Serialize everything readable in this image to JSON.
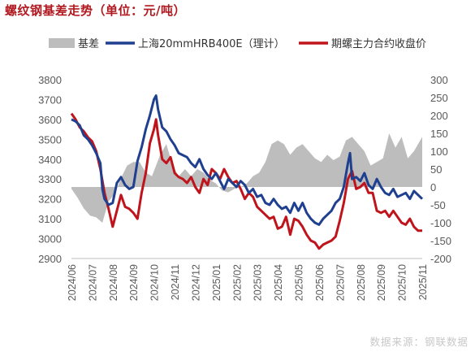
{
  "title": "螺纹钢基差走势（单位：元/吨）",
  "source": "数据来源：钢联数据",
  "chart_data": {
    "type": "line",
    "x_labels": [
      "2024/06",
      "2024/07",
      "2024/08",
      "2024/09",
      "2024/10",
      "2024/11",
      "2024/12",
      "2025/01",
      "2025/02",
      "2025/03",
      "2025/04",
      "2025/05",
      "2025/06",
      "2025/07",
      "2025/08",
      "2025/09",
      "2025/10",
      "2025/11"
    ],
    "y_left": {
      "min": 2900,
      "max": 3800,
      "ticks": [
        2900,
        3000,
        3100,
        3200,
        3300,
        3400,
        3500,
        3600,
        3700,
        3800
      ]
    },
    "y_right": {
      "min": -200,
      "max": 300,
      "ticks": [
        -200,
        -150,
        -100,
        -50,
        0,
        50,
        100,
        150,
        200,
        250,
        300
      ]
    },
    "legend": [
      "基差",
      "上海20mmHRB400E（理计）",
      "期螺主力合约收盘价"
    ],
    "colors": {
      "basis": "#bdbdbd",
      "spot": "#1f3f8f",
      "futures": "#c0141c"
    },
    "series": [
      {
        "name": "上海20mmHRB400E（理计）",
        "axis": "left",
        "x": [
          0,
          0.2,
          0.4,
          0.6,
          0.8,
          1.0,
          1.2,
          1.4,
          1.5,
          1.6,
          1.8,
          2.0,
          2.2,
          2.4,
          2.6,
          2.8,
          3.0,
          3.2,
          3.4,
          3.6,
          3.8,
          4.0,
          4.1,
          4.2,
          4.4,
          4.6,
          4.8,
          5.0,
          5.2,
          5.4,
          5.6,
          5.8,
          6.0,
          6.2,
          6.4,
          6.6,
          6.8,
          7.0,
          7.2,
          7.4,
          7.6,
          7.8,
          8.0,
          8.2,
          8.4,
          8.6,
          8.8,
          9.0,
          9.2,
          9.4,
          9.6,
          9.8,
          10.0,
          10.2,
          10.4,
          10.6,
          10.8,
          11.0,
          11.2,
          11.4,
          11.6,
          11.8,
          12.0,
          12.2,
          12.4,
          12.6,
          12.8,
          13.0,
          13.2,
          13.4,
          13.5,
          13.6,
          13.8,
          14.0,
          14.2,
          14.4,
          14.6,
          14.8,
          15.0,
          15.2,
          15.4,
          15.6,
          15.8,
          16.0,
          16.2,
          16.4,
          16.6,
          16.8,
          17.0
        ],
        "y": [
          3600,
          3590,
          3570,
          3520,
          3500,
          3470,
          3430,
          3380,
          3250,
          3200,
          3170,
          3180,
          3280,
          3310,
          3270,
          3250,
          3260,
          3390,
          3460,
          3550,
          3620,
          3700,
          3720,
          3650,
          3560,
          3540,
          3500,
          3470,
          3430,
          3420,
          3410,
          3380,
          3360,
          3400,
          3350,
          3320,
          3300,
          3330,
          3290,
          3250,
          3300,
          3280,
          3260,
          3290,
          3270,
          3230,
          3250,
          3210,
          3220,
          3180,
          3170,
          3200,
          3170,
          3150,
          3160,
          3130,
          3180,
          3140,
          3180,
          3130,
          3100,
          3080,
          3070,
          3100,
          3120,
          3140,
          3180,
          3200,
          3260,
          3380,
          3430,
          3300,
          3310,
          3290,
          3330,
          3270,
          3250,
          3300,
          3260,
          3230,
          3220,
          3250,
          3210,
          3220,
          3230,
          3200,
          3240,
          3220,
          3200
        ]
      },
      {
        "name": "期螺主力合约收盘价",
        "axis": "left",
        "x": [
          0,
          0.2,
          0.4,
          0.6,
          0.8,
          1.0,
          1.2,
          1.4,
          1.6,
          1.8,
          2.0,
          2.2,
          2.4,
          2.6,
          2.8,
          3.0,
          3.2,
          3.4,
          3.6,
          3.8,
          4.0,
          4.1,
          4.2,
          4.4,
          4.6,
          4.8,
          5.0,
          5.2,
          5.4,
          5.6,
          5.8,
          6.0,
          6.2,
          6.4,
          6.6,
          6.8,
          7.0,
          7.2,
          7.4,
          7.6,
          7.8,
          8.0,
          8.2,
          8.4,
          8.6,
          8.8,
          9.0,
          9.2,
          9.4,
          9.6,
          9.8,
          10.0,
          10.2,
          10.4,
          10.6,
          10.8,
          11.0,
          11.2,
          11.4,
          11.6,
          11.8,
          12.0,
          12.2,
          12.4,
          12.6,
          12.8,
          13.0,
          13.2,
          13.4,
          13.6,
          13.8,
          14.0,
          14.2,
          14.4,
          14.6,
          14.8,
          15.0,
          15.2,
          15.4,
          15.6,
          15.8,
          16.0,
          16.2,
          16.4,
          16.6,
          16.8,
          17.0
        ],
        "y": [
          3630,
          3600,
          3560,
          3540,
          3510,
          3490,
          3440,
          3350,
          3230,
          3150,
          3060,
          3140,
          3220,
          3160,
          3150,
          3130,
          3100,
          3230,
          3330,
          3480,
          3550,
          3600,
          3520,
          3400,
          3380,
          3410,
          3330,
          3310,
          3300,
          3280,
          3310,
          3260,
          3230,
          3300,
          3270,
          3350,
          3330,
          3300,
          3350,
          3310,
          3280,
          3290,
          3250,
          3200,
          3230,
          3210,
          3160,
          3140,
          3120,
          3100,
          3110,
          3050,
          3060,
          3110,
          3020,
          3100,
          3090,
          3060,
          3020,
          2990,
          2980,
          2950,
          2970,
          2980,
          2990,
          3010,
          3090,
          3180,
          3300,
          3340,
          3250,
          3260,
          3280,
          3230,
          3230,
          3140,
          3130,
          3140,
          3110,
          3140,
          3110,
          3080,
          3070,
          3100,
          3060,
          3040,
          3040
        ]
      },
      {
        "name": "基差",
        "axis": "right",
        "type": "area",
        "x": [
          0,
          0.3,
          0.6,
          0.9,
          1.2,
          1.5,
          1.8,
          2.1,
          2.4,
          2.7,
          3.0,
          3.3,
          3.6,
          3.9,
          4.1,
          4.3,
          4.6,
          4.9,
          5.2,
          5.5,
          5.8,
          6.1,
          6.4,
          6.7,
          7.0,
          7.3,
          7.6,
          7.9,
          8.2,
          8.5,
          8.8,
          9.1,
          9.4,
          9.7,
          10.0,
          10.3,
          10.6,
          10.9,
          11.2,
          11.5,
          11.8,
          12.1,
          12.4,
          12.7,
          13.0,
          13.3,
          13.6,
          13.9,
          14.2,
          14.5,
          14.8,
          15.1,
          15.4,
          15.7,
          16.0,
          16.3,
          16.6,
          16.9,
          17.0
        ],
        "y": [
          -5,
          -30,
          -60,
          -80,
          -85,
          -100,
          -40,
          -20,
          25,
          60,
          70,
          70,
          40,
          30,
          60,
          90,
          120,
          60,
          30,
          50,
          30,
          50,
          40,
          20,
          10,
          -10,
          -15,
          -5,
          0,
          10,
          30,
          40,
          70,
          120,
          130,
          120,
          90,
          110,
          120,
          100,
          80,
          70,
          90,
          75,
          85,
          130,
          140,
          120,
          100,
          60,
          70,
          80,
          150,
          110,
          140,
          80,
          100,
          130,
          140
        ]
      }
    ]
  }
}
